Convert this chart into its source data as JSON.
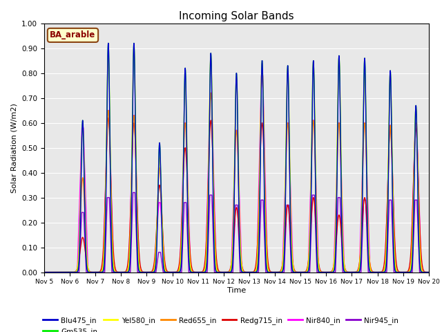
{
  "title": "Incoming Solar Bands",
  "xlabel": "Time",
  "ylabel": "Solar Radiation (W/m2)",
  "annotation": "BA_arable",
  "ylim": [
    0.0,
    1.0
  ],
  "yticks": [
    0.0,
    0.1,
    0.2,
    0.3,
    0.4,
    0.5,
    0.6,
    0.7,
    0.8,
    0.9,
    1.0
  ],
  "xtick_labels": [
    "Nov 5",
    "Nov 6",
    "Nov 7",
    "Nov 8",
    "Nov 9",
    "Nov 10",
    "Nov 11",
    "Nov 12",
    "Nov 13",
    "Nov 14",
    "Nov 15",
    "Nov 16",
    "Nov 17",
    "Nov 18",
    "Nov 19",
    "Nov 20"
  ],
  "series": [
    {
      "name": "Blu475_in",
      "color": "#0000cc"
    },
    {
      "name": "Gm535_in",
      "color": "#00ee00"
    },
    {
      "name": "Yel580_in",
      "color": "#ffff00"
    },
    {
      "name": "Red655_in",
      "color": "#ff8800"
    },
    {
      "name": "Redg715_in",
      "color": "#dd0000"
    },
    {
      "name": "Nir840_in",
      "color": "#ff00ff"
    },
    {
      "name": "Nir945_in",
      "color": "#8800cc"
    }
  ],
  "background_color": "#e8e8e8",
  "n_days": 15,
  "peaks": [
    {
      "day": 1.5,
      "blu": 0.61,
      "grn": 0.61,
      "yel": 0.59,
      "red": 0.38,
      "redg": 0.14,
      "nir840": 0.58,
      "nir945": 0.24
    },
    {
      "day": 2.5,
      "blu": 0.92,
      "grn": 0.92,
      "yel": 0.86,
      "red": 0.65,
      "redg": 0.62,
      "nir840": 0.65,
      "nir945": 0.3
    },
    {
      "day": 3.5,
      "blu": 0.92,
      "grn": 0.92,
      "yel": 0.9,
      "red": 0.63,
      "redg": 0.6,
      "nir840": 0.63,
      "nir945": 0.32
    },
    {
      "day": 4.5,
      "blu": 0.52,
      "grn": 0.52,
      "yel": 0.46,
      "red": 0.42,
      "redg": 0.35,
      "nir840": 0.28,
      "nir945": 0.08
    },
    {
      "day": 5.5,
      "blu": 0.82,
      "grn": 0.82,
      "yel": 0.76,
      "red": 0.6,
      "redg": 0.5,
      "nir840": 0.6,
      "nir945": 0.28
    },
    {
      "day": 6.5,
      "blu": 0.88,
      "grn": 0.88,
      "yel": 0.87,
      "red": 0.72,
      "redg": 0.61,
      "nir840": 0.72,
      "nir945": 0.31
    },
    {
      "day": 7.5,
      "blu": 0.8,
      "grn": 0.8,
      "yel": 0.78,
      "red": 0.57,
      "redg": 0.26,
      "nir840": 0.57,
      "nir945": 0.27
    },
    {
      "day": 8.5,
      "blu": 0.85,
      "grn": 0.85,
      "yel": 0.84,
      "red": 0.79,
      "redg": 0.6,
      "nir840": 0.79,
      "nir945": 0.29
    },
    {
      "day": 9.5,
      "blu": 0.83,
      "grn": 0.83,
      "yel": 0.82,
      "red": 0.6,
      "redg": 0.27,
      "nir840": 0.6,
      "nir945": 0.27
    },
    {
      "day": 10.5,
      "blu": 0.85,
      "grn": 0.85,
      "yel": 0.84,
      "red": 0.61,
      "redg": 0.3,
      "nir840": 0.61,
      "nir945": 0.31
    },
    {
      "day": 11.5,
      "blu": 0.87,
      "grn": 0.87,
      "yel": 0.86,
      "red": 0.6,
      "redg": 0.23,
      "nir840": 0.6,
      "nir945": 0.3
    },
    {
      "day": 12.5,
      "blu": 0.86,
      "grn": 0.86,
      "yel": 0.8,
      "red": 0.6,
      "redg": 0.3,
      "nir840": 0.6,
      "nir945": 0.29
    },
    {
      "day": 13.5,
      "blu": 0.81,
      "grn": 0.81,
      "yel": 0.8,
      "red": 0.59,
      "redg": 0.58,
      "nir840": 0.59,
      "nir945": 0.29
    },
    {
      "day": 14.5,
      "blu": 0.67,
      "grn": 0.67,
      "yel": 0.66,
      "red": 0.6,
      "redg": 0.58,
      "nir840": 0.6,
      "nir945": 0.29
    }
  ]
}
